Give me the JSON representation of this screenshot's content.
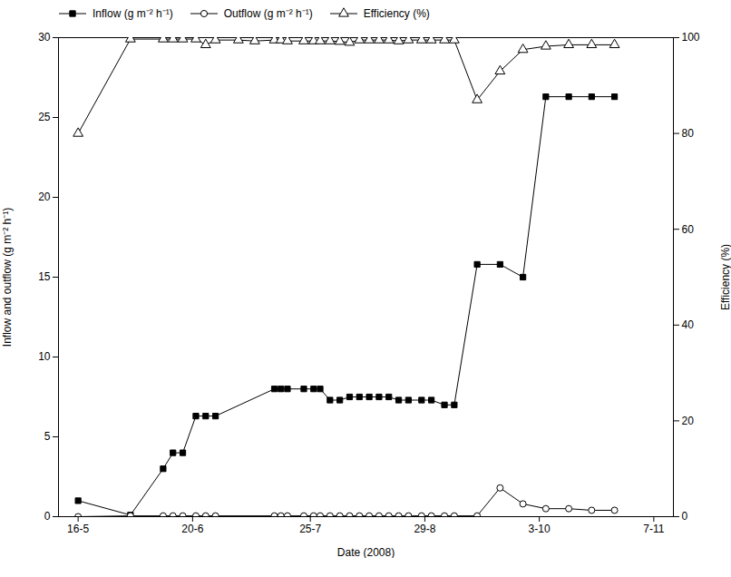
{
  "chart_data": {
    "type": "line",
    "xlabel": "Date (2008)",
    "ylabel": "Inflow and outflow (g m⁻² h⁻¹)",
    "y2label": "Efficiency (%)",
    "xlim": [
      130,
      318
    ],
    "xticks": [
      {
        "value": 136,
        "label": "16-5"
      },
      {
        "value": 171,
        "label": "20-6"
      },
      {
        "value": 207,
        "label": "25-7"
      },
      {
        "value": 242,
        "label": "29-8"
      },
      {
        "value": 277,
        "label": "3-10"
      },
      {
        "value": 312,
        "label": "7-11"
      }
    ],
    "ylim": [
      0,
      30
    ],
    "yticks": [
      0,
      5,
      10,
      15,
      20,
      25,
      30
    ],
    "y2lim": [
      0,
      100
    ],
    "y2ticks": [
      0,
      20,
      40,
      60,
      80,
      100
    ],
    "grid": false,
    "legend": "upper left",
    "series": [
      {
        "name": "Inflow (g m⁻² h⁻¹)",
        "color": "#000000",
        "marker": "filled_square",
        "line_style": "solid",
        "x": [
          136,
          152,
          162,
          165,
          168,
          172,
          175,
          178,
          196,
          198,
          200,
          205,
          208,
          210,
          213,
          216,
          219,
          222,
          225,
          228,
          231,
          234,
          237,
          241,
          244,
          248,
          251,
          258,
          265,
          272,
          279,
          286,
          293,
          300
        ],
        "values": [
          1.0,
          0.1,
          3.0,
          4.0,
          4.0,
          6.3,
          6.3,
          6.3,
          8.0,
          8.0,
          8.0,
          8.0,
          8.0,
          8.0,
          7.3,
          7.3,
          7.5,
          7.5,
          7.5,
          7.5,
          7.5,
          7.3,
          7.3,
          7.3,
          7.3,
          7.0,
          7.0,
          15.8,
          15.8,
          15.0,
          26.3,
          26.3,
          26.3,
          26.3
        ]
      },
      {
        "name": "Outflow (g m⁻² h⁻¹)",
        "color": "#000000",
        "marker": "open_circle",
        "line_style": "solid",
        "x": [
          136,
          152,
          162,
          165,
          168,
          172,
          175,
          178,
          196,
          198,
          200,
          205,
          208,
          210,
          213,
          216,
          219,
          222,
          225,
          228,
          231,
          234,
          237,
          241,
          244,
          248,
          251,
          258,
          265,
          272,
          279,
          286,
          293,
          300
        ],
        "values": [
          0.0,
          0.05,
          0.05,
          0.05,
          0.05,
          0.05,
          0.05,
          0.05,
          0.05,
          0.05,
          0.05,
          0.05,
          0.05,
          0.05,
          0.05,
          0.05,
          0.05,
          0.05,
          0.05,
          0.05,
          0.05,
          0.05,
          0.05,
          0.05,
          0.05,
          0.05,
          0.05,
          0.05,
          1.8,
          0.8,
          0.5,
          0.5,
          0.4,
          0.4
        ]
      },
      {
        "name": "Efficiency (%)",
        "color": "#000000",
        "marker": "open_triangle",
        "line_style": "solid",
        "axis": "y2",
        "x": [
          136,
          152,
          162,
          165,
          168,
          172,
          175,
          178,
          185,
          190,
          196,
          198,
          200,
          205,
          208,
          210,
          213,
          216,
          219,
          222,
          225,
          228,
          231,
          234,
          237,
          241,
          244,
          248,
          251,
          258,
          265,
          272,
          279,
          286,
          293,
          300
        ],
        "values": [
          80,
          99.7,
          99.7,
          99.7,
          99.7,
          99.7,
          98.5,
          99.5,
          99.5,
          99.3,
          99.5,
          99.5,
          99.3,
          99.3,
          99.3,
          99.3,
          99.3,
          99.2,
          99.0,
          99.5,
          99.5,
          99.5,
          99.5,
          99.3,
          99.5,
          99.5,
          99.5,
          99.5,
          99.5,
          87.0,
          93.0,
          97.5,
          98.2,
          98.5,
          98.5,
          98.5
        ]
      }
    ]
  }
}
